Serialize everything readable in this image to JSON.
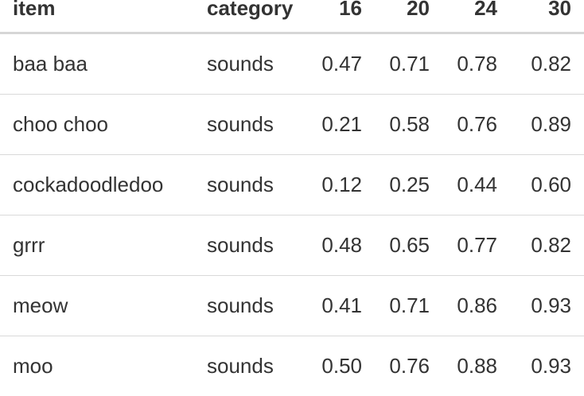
{
  "table": {
    "headers": [
      "item",
      "category",
      "16",
      "20",
      "24",
      "30"
    ],
    "rows": [
      [
        "baa baa",
        "sounds",
        "0.47",
        "0.71",
        "0.78",
        "0.82"
      ],
      [
        "choo choo",
        "sounds",
        "0.21",
        "0.58",
        "0.76",
        "0.89"
      ],
      [
        "cockadoodledoo",
        "sounds",
        "0.12",
        "0.25",
        "0.44",
        "0.60"
      ],
      [
        "grrr",
        "sounds",
        "0.48",
        "0.65",
        "0.77",
        "0.82"
      ],
      [
        "meow",
        "sounds",
        "0.41",
        "0.71",
        "0.86",
        "0.93"
      ],
      [
        "moo",
        "sounds",
        "0.50",
        "0.76",
        "0.88",
        "0.93"
      ]
    ]
  }
}
